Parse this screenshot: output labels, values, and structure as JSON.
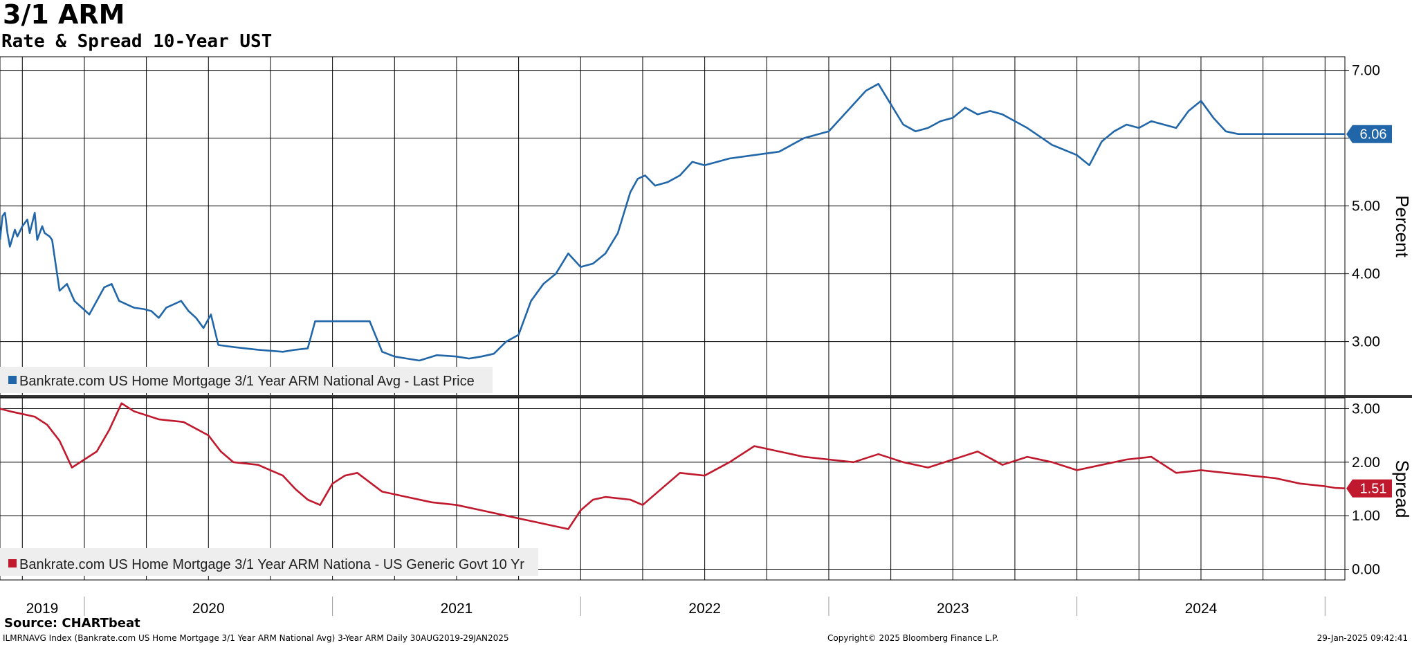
{
  "header": {
    "title": "3/1 ARM",
    "subtitle": "Rate & Spread 10-Year UST"
  },
  "footer": {
    "source": "Source: CHARTbeat",
    "index_line": "ILMRNAVG Index (Bankrate.com US Home Mortgage 3/1 Year ARM National Avg) 3-Year ARM  Daily 30AUG2019-29JAN2025",
    "copyright": "Copyright© 2025 Bloomberg Finance L.P.",
    "timestamp": "29-Jan-2025 09:42:41"
  },
  "colors": {
    "rate_line": "#2166a8",
    "spread_line": "#c0182c",
    "grid": "#000000",
    "divider": "#333333"
  },
  "chart_data": [
    {
      "type": "line",
      "ylabel": "Percent",
      "ylim": [
        2.2,
        7.2
      ],
      "yticks": [
        "3.00",
        "4.00",
        "5.00",
        "6.00",
        "7.00"
      ],
      "xlim": [
        2019.66,
        2025.08
      ],
      "xticks": [
        "2019",
        "2020",
        "2021",
        "2022",
        "2023",
        "2024"
      ],
      "grid": true,
      "legend_position": "bottom-left",
      "last_value_label": "6.06",
      "series": [
        {
          "name": "Bankrate.com US Home Mortgage 3/1 Year ARM National Avg - Last Price",
          "x": [
            2019.66,
            2019.67,
            2019.68,
            2019.69,
            2019.7,
            2019.72,
            2019.73,
            2019.75,
            2019.77,
            2019.78,
            2019.8,
            2019.81,
            2019.83,
            2019.84,
            2019.86,
            2019.87,
            2019.9,
            2019.93,
            2019.96,
            2019.99,
            2020.02,
            2020.05,
            2020.08,
            2020.11,
            2020.14,
            2020.17,
            2020.2,
            2020.24,
            2020.27,
            2020.3,
            2020.33,
            2020.36,
            2020.39,
            2020.42,
            2020.45,
            2020.48,
            2020.51,
            2020.54,
            2020.6,
            2020.7,
            2020.8,
            2020.85,
            2020.9,
            2020.93,
            2020.96,
            2021.0,
            2021.05,
            2021.1,
            2021.15,
            2021.2,
            2021.25,
            2021.3,
            2021.35,
            2021.42,
            2021.5,
            2021.55,
            2021.6,
            2021.65,
            2021.7,
            2021.75,
            2021.8,
            2021.85,
            2021.9,
            2021.95,
            2022.0,
            2022.05,
            2022.1,
            2022.15,
            2022.2,
            2022.23,
            2022.26,
            2022.3,
            2022.35,
            2022.4,
            2022.45,
            2022.5,
            2022.55,
            2022.6,
            2022.7,
            2022.8,
            2022.9,
            2023.0,
            2023.05,
            2023.1,
            2023.15,
            2023.2,
            2023.25,
            2023.3,
            2023.35,
            2023.4,
            2023.45,
            2023.5,
            2023.55,
            2023.6,
            2023.65,
            2023.7,
            2023.75,
            2023.8,
            2023.9,
            2024.0,
            2024.05,
            2024.1,
            2024.15,
            2024.2,
            2024.25,
            2024.3,
            2024.35,
            2024.4,
            2024.45,
            2024.5,
            2024.55,
            2024.6,
            2024.65,
            2024.7,
            2024.73,
            2024.76,
            2024.8,
            2024.85,
            2024.9,
            2024.95,
            2025.0,
            2025.02,
            2025.04,
            2025.06,
            2025.08
          ],
          "values": [
            4.5,
            4.85,
            4.9,
            4.6,
            4.4,
            4.65,
            4.55,
            4.7,
            4.8,
            4.6,
            4.9,
            4.5,
            4.7,
            4.6,
            4.55,
            4.5,
            3.75,
            3.85,
            3.6,
            3.5,
            3.4,
            3.6,
            3.8,
            3.85,
            3.6,
            3.55,
            3.5,
            3.48,
            3.45,
            3.35,
            3.5,
            3.55,
            3.6,
            3.45,
            3.35,
            3.2,
            3.4,
            2.95,
            2.92,
            2.88,
            2.85,
            2.88,
            2.9,
            3.3,
            3.3,
            3.3,
            3.3,
            3.3,
            3.3,
            2.85,
            2.78,
            2.75,
            2.72,
            2.8,
            2.78,
            2.75,
            2.78,
            2.82,
            3.0,
            3.1,
            3.6,
            3.85,
            4.0,
            4.3,
            4.1,
            4.15,
            4.3,
            4.6,
            5.2,
            5.4,
            5.45,
            5.3,
            5.35,
            5.45,
            5.65,
            5.6,
            5.65,
            5.7,
            5.75,
            5.8,
            6.0,
            6.1,
            6.3,
            6.5,
            6.7,
            6.8,
            6.5,
            6.2,
            6.1,
            6.15,
            6.25,
            6.3,
            6.45,
            6.35,
            6.4,
            6.35,
            6.25,
            6.15,
            5.9,
            5.75,
            5.6,
            5.95,
            6.1,
            6.2,
            6.15,
            6.25,
            6.2,
            6.15,
            6.4,
            6.55,
            6.3,
            6.1,
            6.06,
            6.06,
            6.06,
            6.06,
            6.06,
            6.06,
            6.06,
            6.06,
            6.06,
            6.06,
            6.06,
            6.06,
            6.06
          ]
        }
      ]
    },
    {
      "type": "line",
      "ylabel": "Spread",
      "ylim": [
        -0.2,
        3.2
      ],
      "yticks": [
        "0.00",
        "1.00",
        "2.00",
        "3.00"
      ],
      "grid": true,
      "legend_position": "bottom-left",
      "last_value_label": "1.51",
      "series": [
        {
          "name": "Bankrate.com US Home Mortgage 3/1 Year ARM Nationa - US Generic Govt 10 Yr",
          "x": [
            2019.66,
            2019.7,
            2019.75,
            2019.8,
            2019.85,
            2019.9,
            2019.95,
            2020.0,
            2020.05,
            2020.1,
            2020.15,
            2020.2,
            2020.3,
            2020.4,
            2020.5,
            2020.55,
            2020.6,
            2020.7,
            2020.8,
            2020.85,
            2020.9,
            2020.95,
            2021.0,
            2021.05,
            2021.1,
            2021.2,
            2021.3,
            2021.4,
            2021.5,
            2021.6,
            2021.7,
            2021.8,
            2021.9,
            2021.95,
            2022.0,
            2022.05,
            2022.1,
            2022.2,
            2022.25,
            2022.3,
            2022.4,
            2022.5,
            2022.6,
            2022.7,
            2022.8,
            2022.9,
            2023.0,
            2023.1,
            2023.2,
            2023.3,
            2023.4,
            2023.5,
            2023.6,
            2023.7,
            2023.8,
            2023.9,
            2024.0,
            2024.1,
            2024.2,
            2024.3,
            2024.4,
            2024.5,
            2024.6,
            2024.7,
            2024.8,
            2024.9,
            2025.0,
            2025.04,
            2025.08
          ],
          "values": [
            3.0,
            2.95,
            2.9,
            2.85,
            2.7,
            2.4,
            1.9,
            2.05,
            2.2,
            2.6,
            3.1,
            2.95,
            2.8,
            2.75,
            2.5,
            2.2,
            2.0,
            1.95,
            1.75,
            1.5,
            1.3,
            1.2,
            1.6,
            1.75,
            1.8,
            1.45,
            1.35,
            1.25,
            1.2,
            1.1,
            1.0,
            0.9,
            0.8,
            0.75,
            1.1,
            1.3,
            1.35,
            1.3,
            1.2,
            1.4,
            1.8,
            1.75,
            2.0,
            2.3,
            2.2,
            2.1,
            2.05,
            2.0,
            2.15,
            2.0,
            1.9,
            2.05,
            2.2,
            1.95,
            2.1,
            2.0,
            1.85,
            1.95,
            2.05,
            2.1,
            1.8,
            1.85,
            1.8,
            1.75,
            1.7,
            1.6,
            1.55,
            1.52,
            1.51
          ]
        }
      ]
    }
  ]
}
